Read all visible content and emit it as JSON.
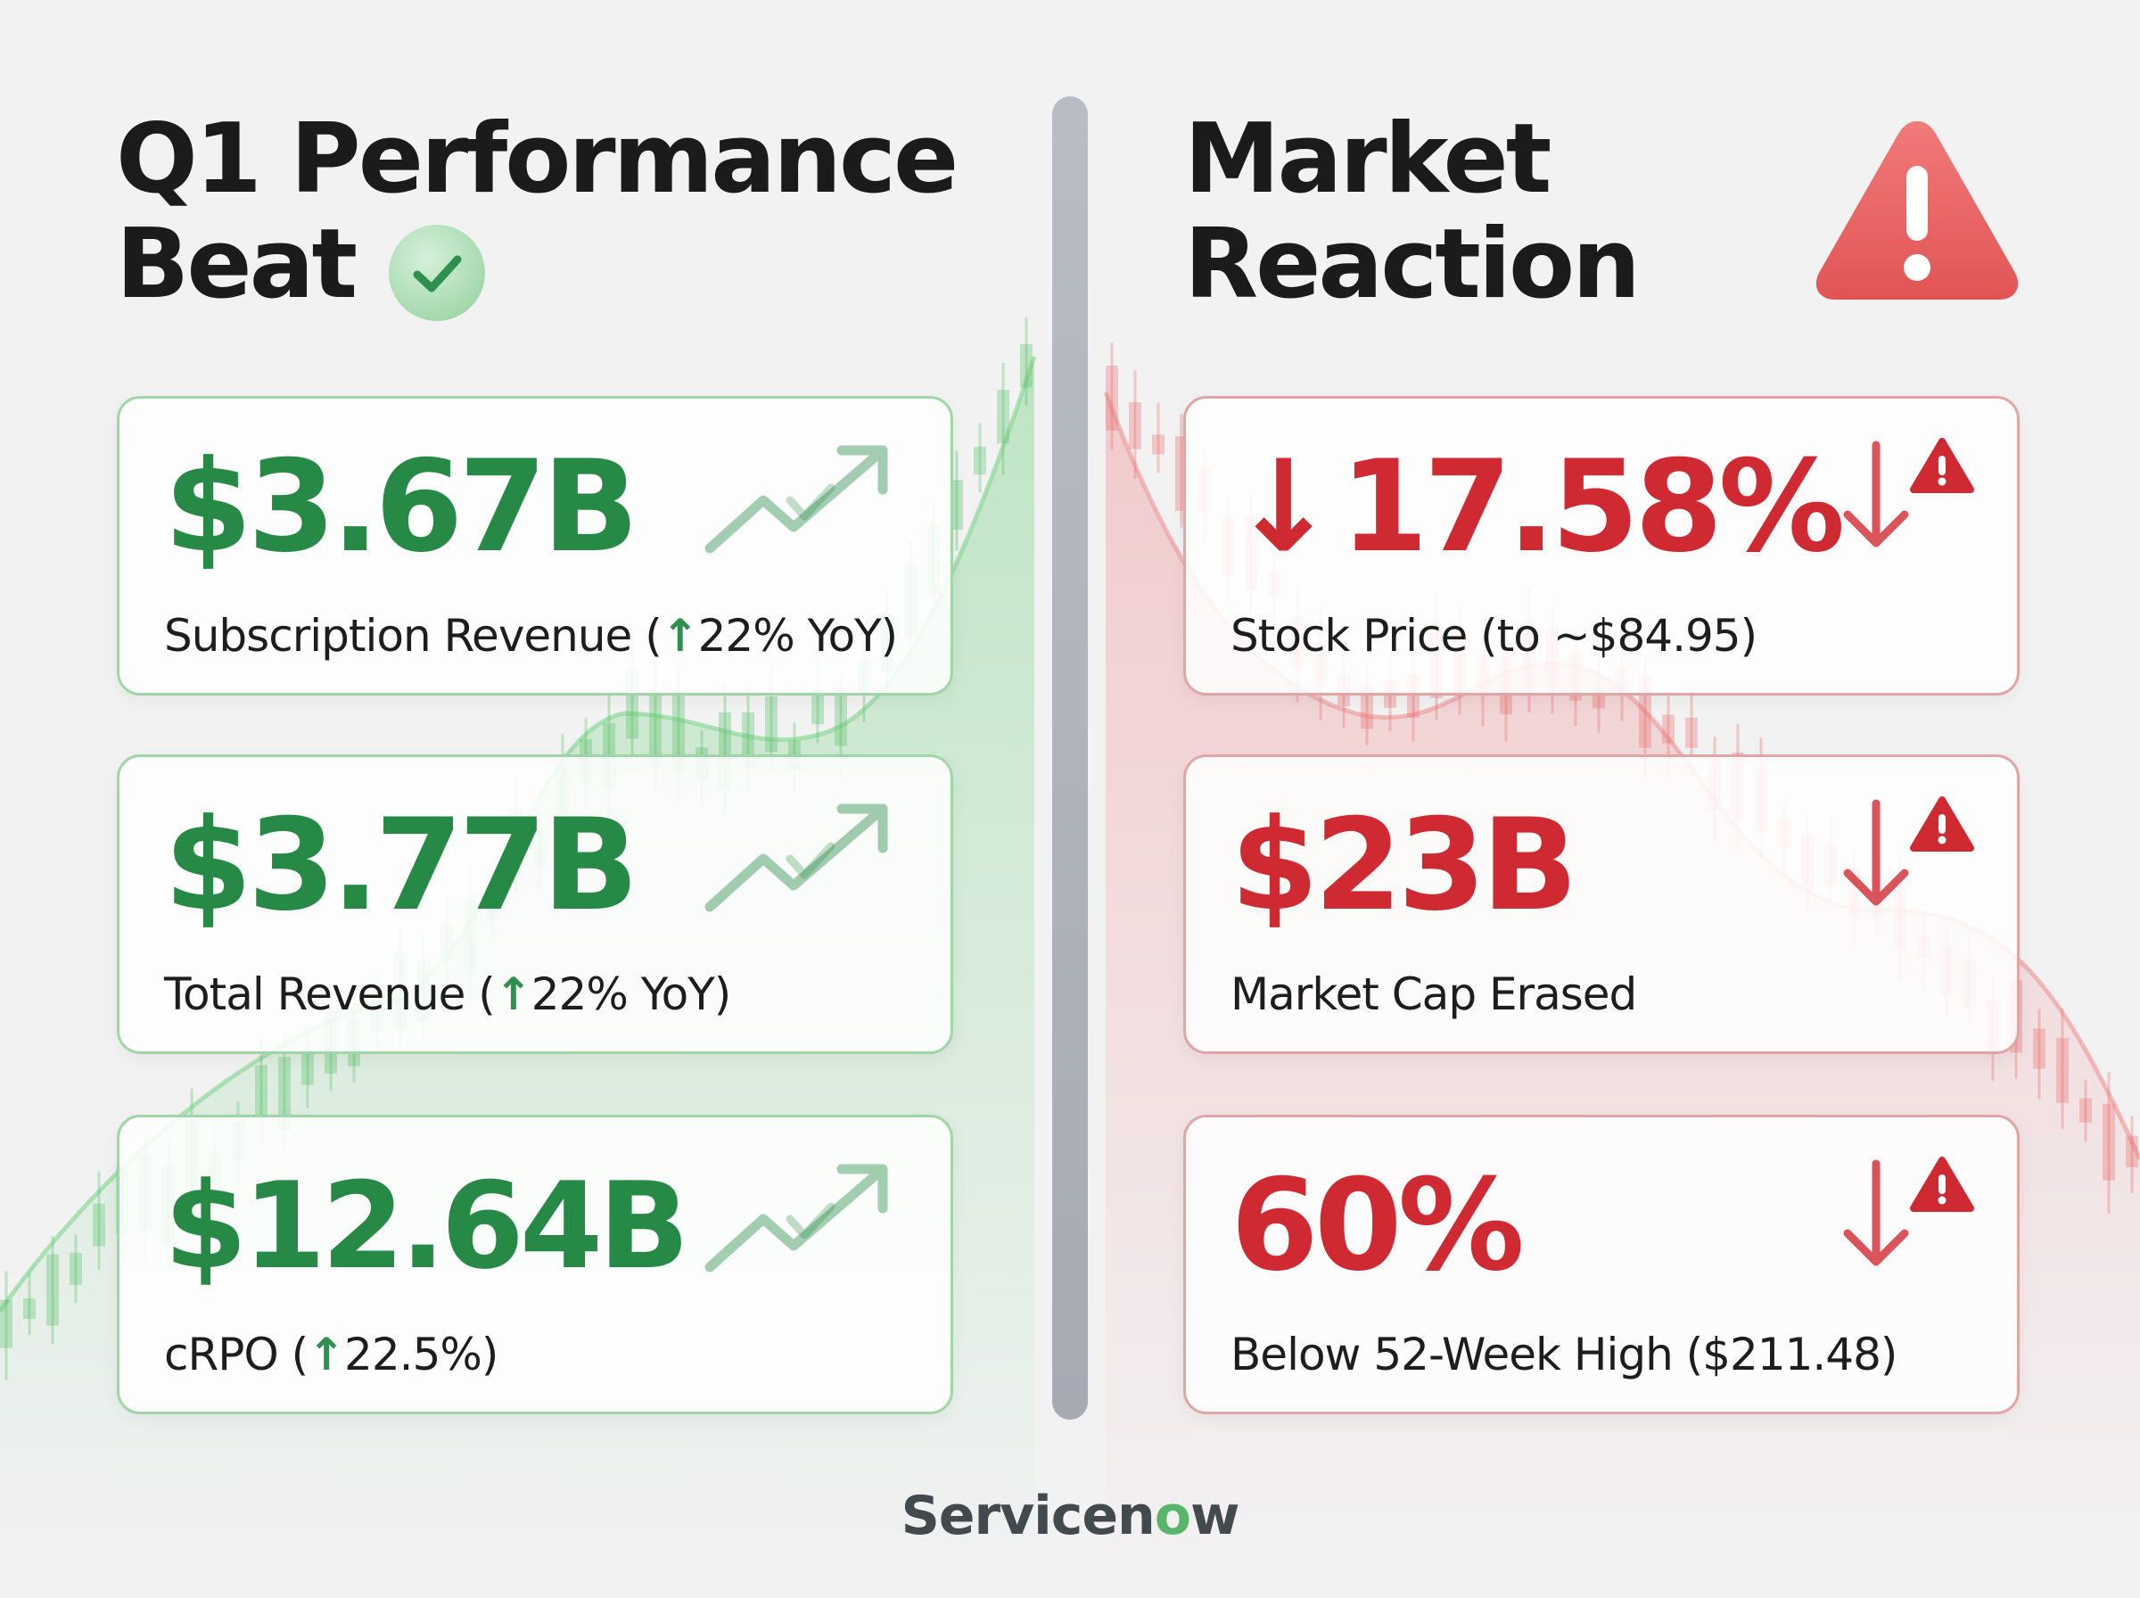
{
  "left_panel": {
    "heading_line1": "Q1 Performance",
    "heading_line2": "Beat",
    "accent_color": "#268a46",
    "cards": [
      {
        "value": "$3.67B",
        "label_prefix": "Subscription Revenue (",
        "label_arrow": "↑",
        "label_suffix": "22% YoY)"
      },
      {
        "value": "$3.77B",
        "label_prefix": "Total Revenue (",
        "label_arrow": "↑",
        "label_suffix": "22% YoY)"
      },
      {
        "value": "$12.64B",
        "label_prefix": "cRPO (",
        "label_arrow": "↑",
        "label_suffix": "22.5%)"
      }
    ]
  },
  "right_panel": {
    "heading_line1": "Market",
    "heading_line2": "Reaction",
    "accent_color": "#cf2932",
    "cards": [
      {
        "value_arrow": "↓",
        "value": "17.58%",
        "label": "Stock Price (to ~$84.95)"
      },
      {
        "value": "$23B",
        "label": "Market Cap Erased"
      },
      {
        "value": "60%",
        "label": "Below 52-Week High ($211.48)"
      }
    ]
  },
  "brand": {
    "prefix": "Servicen",
    "mark": "o",
    "suffix": "w"
  }
}
